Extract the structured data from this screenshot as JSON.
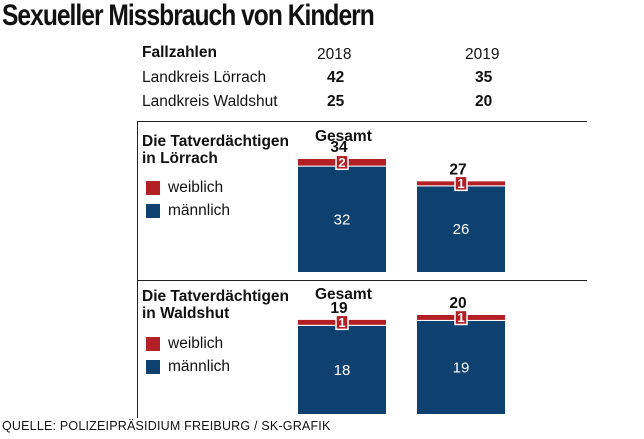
{
  "title": "Sexueller Missbrauch von Kindern",
  "table": {
    "header": "Fallzahlen",
    "years": [
      "2018",
      "2019"
    ],
    "rows": [
      {
        "label": "Landkreis Lörrach",
        "values": [
          "42",
          "35"
        ]
      },
      {
        "label": "Landkreis Waldshut",
        "values": [
          "25",
          "20"
        ]
      }
    ]
  },
  "legend": {
    "female": "weiblich",
    "male": "männlich"
  },
  "colors": {
    "female": "#b21f24",
    "male": "#0f4170"
  },
  "gesamt_label": "Gesamt",
  "source": "QUELLE: POLIZEIPRÄSIDIUM FREIBURG / SK-GRAFIK",
  "chart_data": [
    {
      "type": "bar",
      "stacked": true,
      "title": "Die Tatverdächtigen in Lörrach",
      "title_lines": [
        "Die Tatverdächtigen",
        "in Lörrach"
      ],
      "categories": [
        "2018",
        "2019"
      ],
      "series": [
        {
          "name": "männlich",
          "values": [
            32,
            26
          ]
        },
        {
          "name": "weiblich",
          "values": [
            2,
            1
          ]
        }
      ],
      "totals": [
        34,
        27
      ],
      "ylim": [
        0,
        34
      ]
    },
    {
      "type": "bar",
      "stacked": true,
      "title": "Die Tatverdächtigen in Waldshut",
      "title_lines": [
        "Die Tatverdächtigen",
        "in Waldshut"
      ],
      "categories": [
        "2018",
        "2019"
      ],
      "series": [
        {
          "name": "männlich",
          "values": [
            18,
            19
          ]
        },
        {
          "name": "weiblich",
          "values": [
            1,
            1
          ]
        }
      ],
      "totals": [
        19,
        20
      ],
      "ylim": [
        0,
        20
      ]
    }
  ]
}
